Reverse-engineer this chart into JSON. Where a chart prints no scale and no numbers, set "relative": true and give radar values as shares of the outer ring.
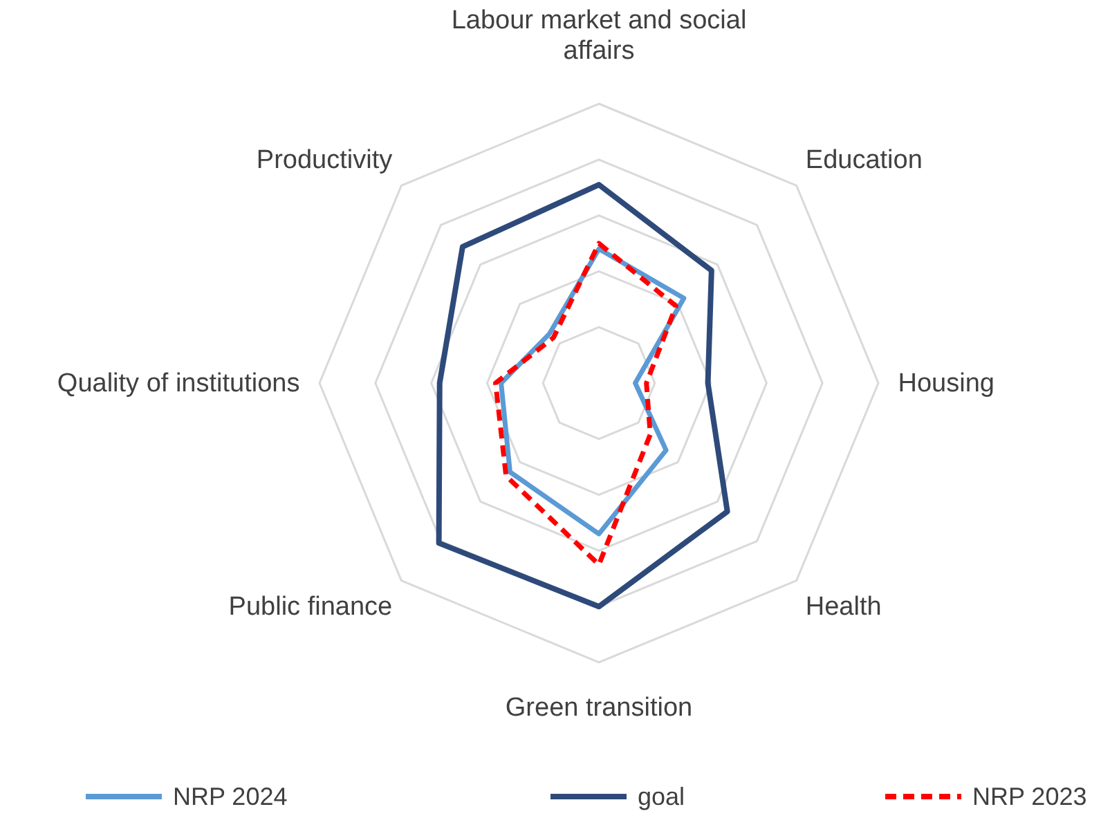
{
  "chart_data": {
    "type": "radar",
    "relative": true,
    "grid": true,
    "legend": "bottom",
    "marker": "none",
    "categories": [
      "Labour market and social affairs",
      "Education",
      "Housing",
      "Health",
      "Green transition",
      "Public finance",
      "Quality of institutions",
      "Productivity"
    ],
    "series": [
      {
        "name": "NRP 2024",
        "color": "#5b9bd5",
        "line_style": "solid",
        "values": [
          0.48,
          0.43,
          0.13,
          0.34,
          0.54,
          0.45,
          0.35,
          0.25
        ]
      },
      {
        "name": "goal",
        "color": "#2e4a7a",
        "line_style": "solid",
        "values": [
          0.71,
          0.57,
          0.39,
          0.65,
          0.8,
          0.81,
          0.57,
          0.69
        ]
      },
      {
        "name": "NRP 2023",
        "color": "#ff0000",
        "line_style": "dashed",
        "values": [
          0.5,
          0.39,
          0.17,
          0.26,
          0.65,
          0.47,
          0.37,
          0.23
        ]
      }
    ]
  }
}
